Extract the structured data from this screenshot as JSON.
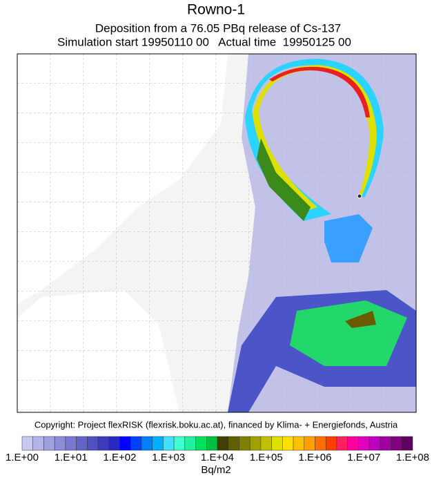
{
  "header": {
    "title": "Rowno-1",
    "subtitle": "Deposition from a   76.05 PBq release of Cs-137",
    "time_line": "Simulation start 19950110 00   Actual time  19950125 00"
  },
  "footer": {
    "copyright": "Copyright: Project flexRISK (flexrisk.boku.ac.at), financed by Klima- + Energiefonds, Austria"
  },
  "legend": {
    "labels": [
      "1.E+00",
      "1.E+01",
      "1.E+02",
      "1.E+03",
      "1.E+04",
      "1.E+05",
      "1.E+06",
      "1.E+07",
      "1.E+08"
    ],
    "unit": "Bq/m2"
  }
}
